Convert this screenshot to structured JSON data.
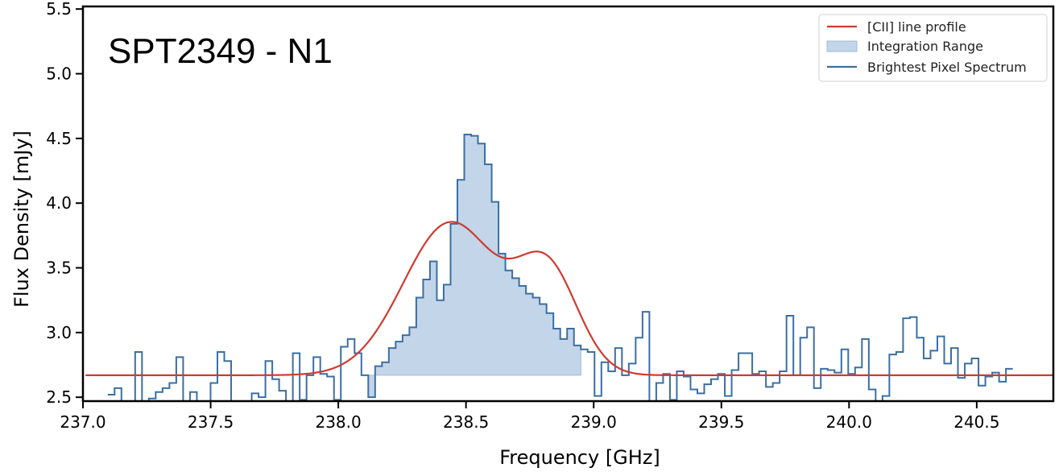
{
  "chart_data": {
    "type": "line",
    "title": "SPT2349 - N1",
    "xlabel": "Frequency [GHz]",
    "ylabel": "Flux Density [mJy]",
    "xlim": [
      237.0,
      240.8
    ],
    "ylim": [
      2.47,
      5.52
    ],
    "x_ticks": [
      "237.0",
      "237.5",
      "238.0",
      "238.5",
      "239.0",
      "239.5",
      "240.0",
      "240.5"
    ],
    "y_ticks": [
      "2.5",
      "3.0",
      "3.5",
      "4.0",
      "4.5",
      "5.0",
      "5.5"
    ],
    "grid": false,
    "legend_position": "top-right",
    "colors": {
      "line_profile": "#d03a30",
      "spectrum": "#3b6fa3",
      "integration_fill": "#c3d5e8",
      "integration_edge": "#9fbcd9"
    },
    "series": [
      {
        "name": "[CII] line profile",
        "kind": "double-gaussian",
        "baseline": 2.67,
        "components": [
          {
            "center": 238.44,
            "amplitude": 1.18,
            "sigma": 0.185
          },
          {
            "center": 238.82,
            "amplitude": 0.78,
            "sigma": 0.12
          }
        ],
        "x_range": [
          237.01,
          240.8
        ]
      },
      {
        "name": "Integration Range",
        "kind": "filled-region",
        "x_range": [
          238.1,
          238.95
        ],
        "baseline": 2.67
      },
      {
        "name": "Brightest Pixel Spectrum",
        "kind": "step",
        "bin_width": 0.02685,
        "x_start": 237.097,
        "values": [
          2.52,
          2.57,
          2.41,
          2.41,
          2.85,
          2.4,
          2.49,
          2.54,
          2.57,
          2.61,
          2.81,
          2.4,
          2.54,
          2.43,
          2.41,
          2.61,
          2.85,
          2.78,
          2.43,
          2.42,
          2.42,
          2.53,
          2.5,
          2.78,
          2.64,
          2.55,
          2.45,
          2.84,
          2.48,
          2.67,
          2.81,
          2.68,
          2.66,
          2.48,
          2.89,
          2.95,
          2.84,
          2.67,
          2.5,
          2.74,
          2.77,
          2.88,
          2.93,
          2.98,
          3.04,
          3.27,
          3.41,
          3.55,
          3.25,
          3.37,
          3.84,
          4.18,
          4.53,
          4.52,
          4.46,
          4.3,
          4.01,
          3.61,
          3.48,
          3.42,
          3.36,
          3.3,
          3.27,
          3.22,
          3.15,
          3.03,
          2.95,
          3.03,
          2.9,
          2.87,
          2.85,
          2.51,
          2.77,
          2.7,
          2.88,
          2.67,
          2.76,
          2.96,
          3.16,
          2.43,
          2.61,
          2.68,
          2.48,
          2.7,
          2.66,
          2.56,
          2.53,
          2.6,
          2.64,
          2.68,
          2.51,
          2.71,
          2.84,
          2.84,
          2.68,
          2.7,
          2.58,
          2.61,
          2.7,
          3.13,
          2.67,
          2.96,
          3.04,
          2.57,
          2.72,
          2.71,
          2.69,
          2.87,
          2.68,
          2.73,
          2.95,
          2.56,
          2.41,
          2.51,
          2.83,
          2.85,
          3.11,
          3.12,
          2.96,
          2.8,
          2.86,
          2.97,
          2.76,
          2.88,
          2.65,
          2.76,
          2.8,
          2.59,
          2.66,
          2.69,
          2.62,
          2.72
        ]
      }
    ],
    "annotations": []
  }
}
